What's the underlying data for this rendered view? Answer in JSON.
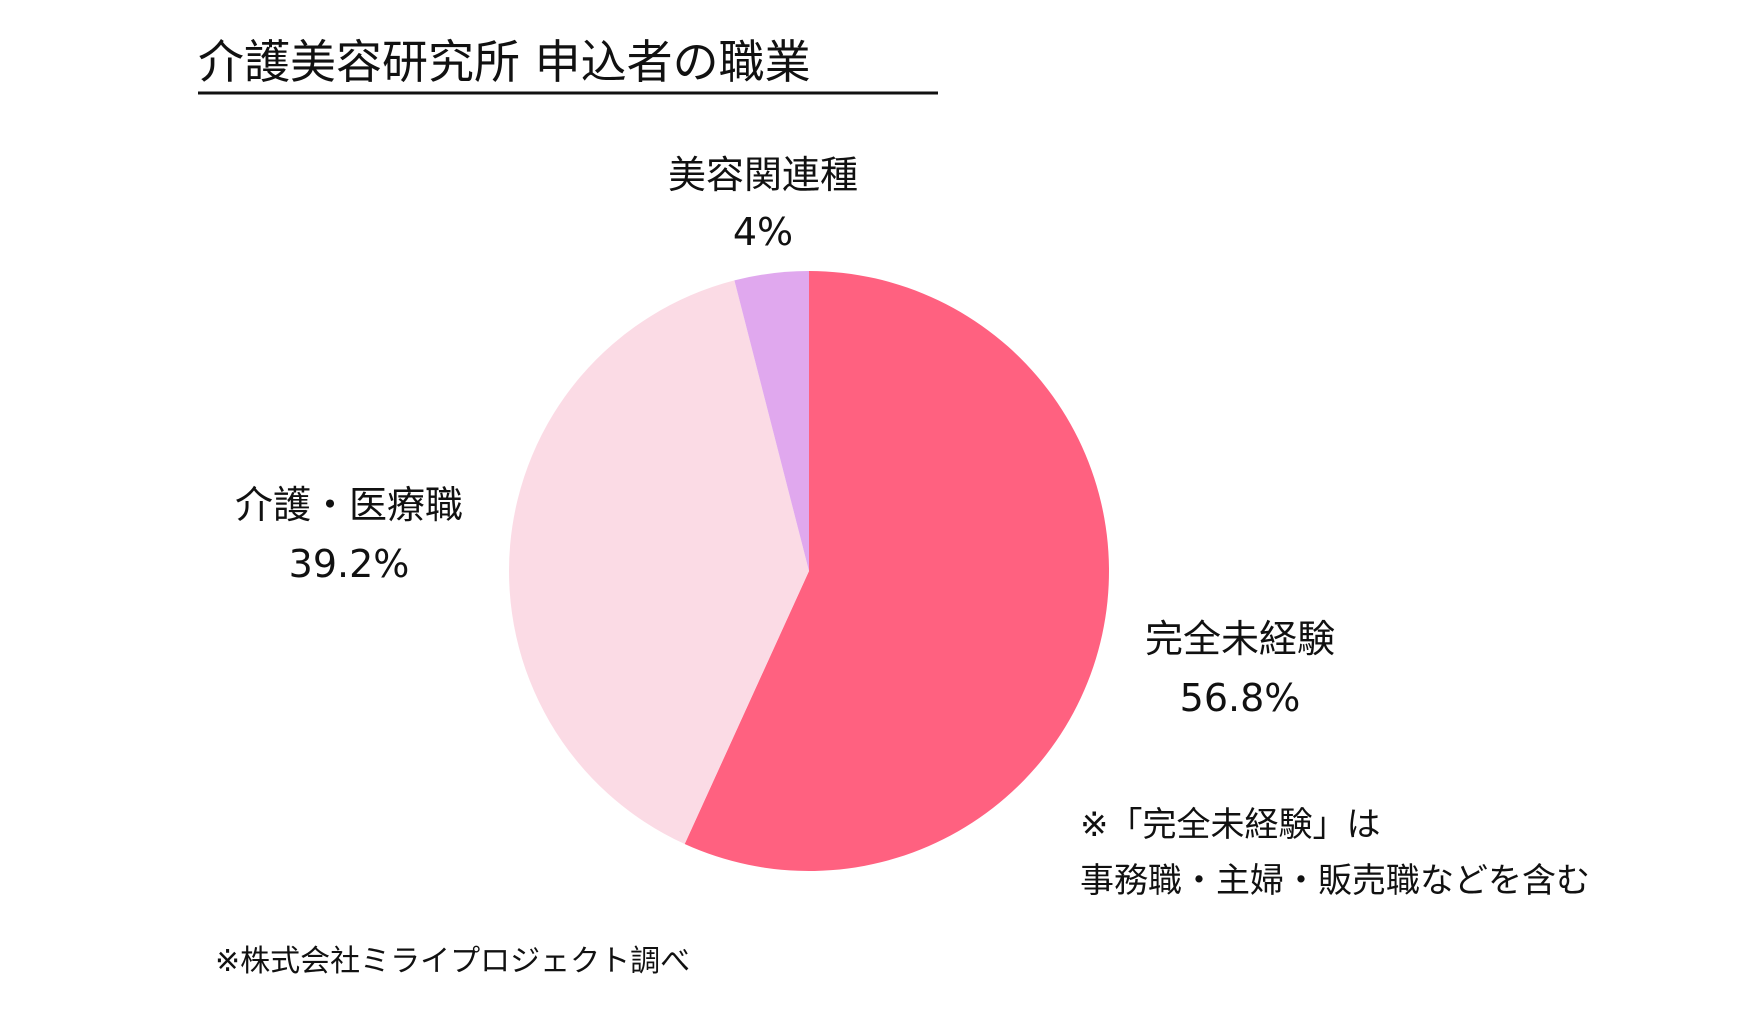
{
  "chart_data": {
    "type": "pie",
    "title": "介護美容研究所 申込者の職業",
    "start_angle_deg": 0,
    "direction": "clockwise",
    "slices": [
      {
        "label": "完全未経験",
        "value": 56.8,
        "value_label": "56.8%",
        "color": "#FF6180"
      },
      {
        "label": "介護・医療職",
        "value": 39.2,
        "value_label": "39.2%",
        "color": "#FBDBE5"
      },
      {
        "label": "美容関連種",
        "value": 4,
        "value_label": "4%",
        "color": "#E0A8EE"
      }
    ],
    "note": [
      "※「完全未経験」は",
      "事務職・主婦・販売職などを含む"
    ],
    "source": "※株式会社ミライプロジェクト調べ"
  }
}
